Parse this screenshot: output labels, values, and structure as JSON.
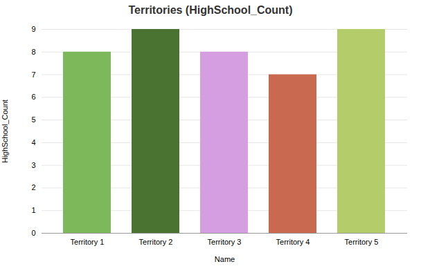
{
  "chart_data": {
    "type": "bar",
    "title": "Territories (HighSchool_Count)",
    "xlabel": "Name",
    "ylabel": "HighSchool_Count",
    "categories": [
      "Territory 1",
      "Territory 2",
      "Territory 3",
      "Territory 4",
      "Territory 5"
    ],
    "values": [
      8,
      9,
      8,
      7,
      9
    ],
    "colors": [
      "#7db85a",
      "#4a7230",
      "#d49ee0",
      "#c96a50",
      "#b5cc6a"
    ],
    "ylim": [
      0,
      9
    ],
    "yticks": [
      0,
      1,
      2,
      3,
      4,
      5,
      6,
      7,
      8,
      9
    ],
    "grid": true
  }
}
